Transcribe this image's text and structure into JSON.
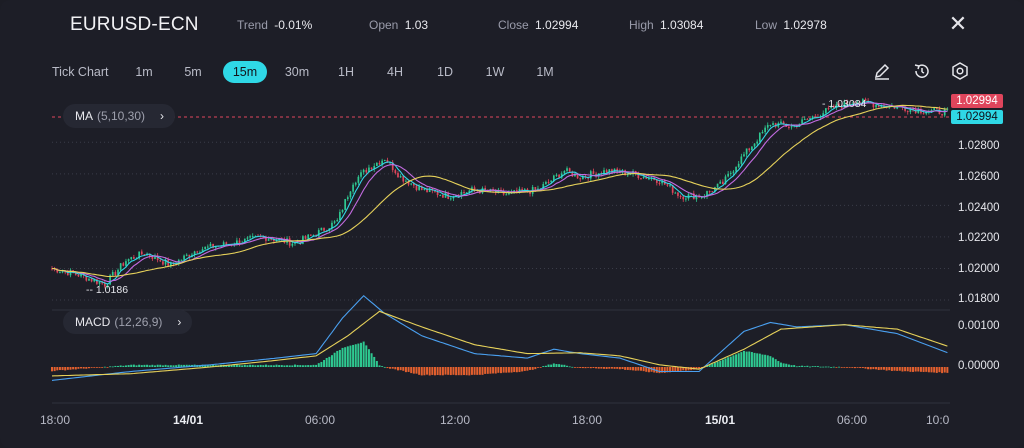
{
  "header": {
    "symbol": "EURUSD-ECN",
    "trend_label": "Trend",
    "trend_value": "-0.01%",
    "open_label": "Open",
    "open_value": "1.03",
    "close_label": "Close",
    "close_value": "1.02994",
    "high_label": "High",
    "high_value": "1.03084",
    "low_label": "Low",
    "low_value": "1.02978"
  },
  "toolbar": {
    "tick_chart": "Tick Chart",
    "timeframes": [
      "1m",
      "5m",
      "15m",
      "30m",
      "1H",
      "4H",
      "1D",
      "1W",
      "1M"
    ],
    "active_timeframe": "15m",
    "icons": [
      "draw-icon",
      "reset-icon",
      "settings-icon"
    ]
  },
  "indicators": {
    "ma_name": "MA",
    "ma_params": "(5,10,30)",
    "macd_name": "MACD",
    "macd_params": "(12,26,9)"
  },
  "price_axis": {
    "ticks": [
      "1.02800",
      "1.02600",
      "1.02400",
      "1.02200",
      "1.02000",
      "1.01800"
    ],
    "current_price_red": "1.02994",
    "current_price_cyan": "1.02994",
    "high_annotation": "1.03084",
    "low_annotation": "1.0186"
  },
  "macd_axis": {
    "ticks": [
      "0.00100",
      "0.00000"
    ]
  },
  "time_axis": {
    "labels": [
      "18:00",
      "14/01",
      "06:00",
      "12:00",
      "18:00",
      "15/01",
      "06:00",
      "10:0"
    ]
  },
  "colors": {
    "up": "#2ec991",
    "down": "#e0455c",
    "accent": "#2fd8e6",
    "ma5": "#33d6e8",
    "ma10": "#c26be0",
    "ma30": "#e6d15a",
    "macd_line": "#4aa0f0",
    "signal_line": "#e6d15a",
    "hist_pos": "#2ec991",
    "hist_neg": "#e4602e"
  },
  "chart_data": {
    "type": "candlestick",
    "title": "EURUSD-ECN",
    "interval": "15m",
    "ylim": [
      1.018,
      1.031
    ],
    "close_path": [
      [
        0,
        1.02
      ],
      [
        10,
        1.0196
      ],
      [
        20,
        1.019
      ],
      [
        28,
        1.0205
      ],
      [
        35,
        1.021
      ],
      [
        45,
        1.0202
      ],
      [
        55,
        1.0212
      ],
      [
        68,
        1.0216
      ],
      [
        80,
        1.022
      ],
      [
        92,
        1.0216
      ],
      [
        100,
        1.0222
      ],
      [
        108,
        1.023
      ],
      [
        114,
        1.0255
      ],
      [
        120,
        1.0264
      ],
      [
        126,
        1.027
      ],
      [
        132,
        1.0258
      ],
      [
        140,
        1.025
      ],
      [
        150,
        1.0246
      ],
      [
        160,
        1.025
      ],
      [
        172,
        1.0247
      ],
      [
        184,
        1.025
      ],
      [
        194,
        1.0262
      ],
      [
        200,
        1.0258
      ],
      [
        210,
        1.0262
      ],
      [
        220,
        1.026
      ],
      [
        230,
        1.0256
      ],
      [
        238,
        1.0246
      ],
      [
        246,
        1.0246
      ],
      [
        254,
        1.0254
      ],
      [
        260,
        1.0268
      ],
      [
        266,
        1.028
      ],
      [
        272,
        1.0292
      ],
      [
        280,
        1.029
      ],
      [
        288,
        1.0296
      ],
      [
        296,
        1.0302
      ],
      [
        304,
        1.0306
      ],
      [
        312,
        1.0304
      ],
      [
        322,
        1.0302
      ],
      [
        330,
        1.03
      ],
      [
        340,
        1.0299
      ]
    ],
    "macd_line_path": [
      [
        0,
        -0.0003
      ],
      [
        30,
        -0.0001
      ],
      [
        60,
        5e-05
      ],
      [
        85,
        0.0002
      ],
      [
        100,
        0.0003
      ],
      [
        110,
        0.0011
      ],
      [
        118,
        0.0016
      ],
      [
        126,
        0.0012
      ],
      [
        140,
        0.0007
      ],
      [
        160,
        0.0003
      ],
      [
        180,
        0.0002
      ],
      [
        190,
        0.0004
      ],
      [
        200,
        0.0003
      ],
      [
        215,
        0.0002
      ],
      [
        230,
        -0.0001
      ],
      [
        245,
        -0.0001
      ],
      [
        262,
        0.0008
      ],
      [
        272,
        0.001
      ],
      [
        282,
        0.0009
      ],
      [
        300,
        0.00095
      ],
      [
        320,
        0.00075
      ],
      [
        340,
        0.0003
      ]
    ],
    "signal_line_path": [
      [
        0,
        -0.0002
      ],
      [
        30,
        -0.00015
      ],
      [
        60,
        0.0
      ],
      [
        85,
        0.00015
      ],
      [
        100,
        0.00025
      ],
      [
        112,
        0.0007
      ],
      [
        124,
        0.00125
      ],
      [
        140,
        0.0009
      ],
      [
        160,
        0.0005
      ],
      [
        180,
        0.0003
      ],
      [
        200,
        0.00032
      ],
      [
        215,
        0.00025
      ],
      [
        230,
        5e-05
      ],
      [
        245,
        -5e-05
      ],
      [
        262,
        0.0004
      ],
      [
        276,
        0.00085
      ],
      [
        300,
        0.00095
      ],
      [
        320,
        0.00085
      ],
      [
        340,
        0.00045
      ]
    ],
    "series": [
      {
        "name": "MA (5,10,30)"
      },
      {
        "name": "MACD (12,26,9)"
      }
    ]
  }
}
